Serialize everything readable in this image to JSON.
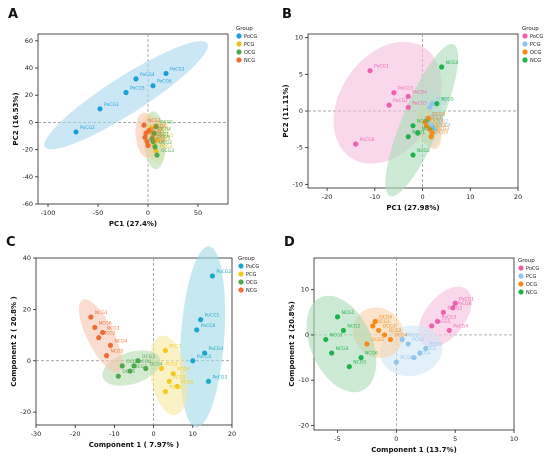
{
  "panel_letters": [
    "A",
    "B",
    "C",
    "D"
  ],
  "legend_title": "Group",
  "chart_data": [
    {
      "panel": "A",
      "type": "scatter",
      "xlabel": "PC1 (27.4%)",
      "ylabel": "PC2 (16.53%)",
      "xlim": [
        -110,
        80
      ],
      "ylim": [
        -60,
        65
      ],
      "xticks": [
        -100,
        -50,
        0,
        50
      ],
      "yticks": [
        -60,
        -40,
        -20,
        0,
        20,
        40,
        60
      ],
      "grid": false,
      "legend": "right",
      "series": [
        {
          "name": "PoCG",
          "color": "#1a9fd8",
          "fill": "#a9d7ee",
          "x": [
            -72,
            -48,
            -22,
            -12,
            18,
            5
          ],
          "y": [
            -7,
            10,
            22,
            32,
            36,
            27
          ],
          "labels": [
            "PoCG2",
            "PoCG3",
            "PoCG5",
            "PoCG4",
            "PoCG1",
            "PoCG6"
          ]
        },
        {
          "name": "PCG",
          "color": "#e8c31e",
          "fill": "#f6e7a2",
          "x": [
            3,
            5,
            6,
            8,
            9,
            4
          ],
          "y": [
            -4,
            -10,
            -16,
            -21,
            -13,
            -7
          ],
          "labels": [
            "PCG1",
            "PCG2",
            "PCG3",
            "PCG4",
            "PCG5",
            "PCG6"
          ]
        },
        {
          "name": "OCG",
          "color": "#4ea94e",
          "fill": "#b9ddb1",
          "x": [
            4,
            7,
            9,
            6,
            8,
            5
          ],
          "y": [
            -12,
            -18,
            -24,
            -8,
            -3,
            -14
          ],
          "labels": [
            "OCG1",
            "OCG2",
            "OCG3",
            "OCG4",
            "OCG5",
            "OCG6"
          ]
        },
        {
          "name": "NCG",
          "color": "#ef6b2f",
          "fill": "#f8c8ae",
          "x": [
            -4,
            -2,
            -1,
            1,
            -3,
            0
          ],
          "y": [
            -2,
            -8,
            -14,
            -6,
            -11,
            -17
          ],
          "labels": [
            "NCG1",
            "NCG2",
            "NCG3",
            "NCG4",
            "NCG5",
            "NCG6"
          ]
        }
      ]
    },
    {
      "panel": "B",
      "type": "scatter",
      "xlabel": "PC1 (27.98%)",
      "ylabel": "PC2 (11.11%)",
      "xlim": [
        -24,
        20
      ],
      "ylim": [
        -10.5,
        10.5
      ],
      "xticks": [
        -20,
        -10,
        0,
        10,
        20
      ],
      "yticks": [
        -10,
        -5,
        0,
        5,
        10
      ],
      "grid": false,
      "legend": "right",
      "series": [
        {
          "name": "PoCG",
          "color": "#ef5fad",
          "fill": "#f7bedd",
          "x": [
            -11,
            -7,
            -6,
            -3,
            -3,
            -14
          ],
          "y": [
            5.5,
            0.8,
            2.5,
            2,
            0.5,
            -4.5
          ],
          "labels": [
            "PoCG1",
            "PoCG2",
            "PoCG3",
            "PoCG4",
            "PoCG5",
            "PoCG6"
          ]
        },
        {
          "name": "PCG",
          "color": "#8fc6ec",
          "fill": "#cfe6f7",
          "x": [
            1,
            2,
            1.5,
            2.5,
            1,
            2
          ],
          "y": [
            -1,
            -2,
            0.5,
            -2.5,
            -1.5,
            1
          ],
          "labels": [
            "PCG1",
            "PCG2",
            "PCG3",
            "PCG4",
            "PCG5",
            "PCG6"
          ]
        },
        {
          "name": "OCG",
          "color": "#f58a18",
          "fill": "#fad2a6",
          "x": [
            0.5,
            1.5,
            2,
            0.8,
            1.8,
            1.2
          ],
          "y": [
            -1.5,
            -2.5,
            -3,
            -2,
            -3.5,
            -1
          ],
          "labels": [
            "OCG1",
            "OCG2",
            "OCG3",
            "OCG4",
            "OCG5",
            "OCG6"
          ]
        },
        {
          "name": "NCG",
          "color": "#1db34a",
          "fill": "#a8dbb5",
          "x": [
            -3,
            -2,
            -1,
            4,
            3,
            -2
          ],
          "y": [
            -3.5,
            -6,
            -3,
            6,
            1,
            -2
          ],
          "labels": [
            "NCG1",
            "NCG2",
            "NCG3",
            "NCG4",
            "NCG5",
            "NCG6"
          ]
        }
      ]
    },
    {
      "panel": "C",
      "type": "scatter",
      "xlabel": "Component 1 ( 7.97% )",
      "ylabel": "Component 2 ( 20.8% )",
      "xlim": [
        -30,
        20
      ],
      "ylim": [
        -25,
        40
      ],
      "xticks": [
        -30,
        -20,
        -10,
        0,
        10,
        20
      ],
      "yticks": [
        -20,
        0,
        20,
        40
      ],
      "grid": false,
      "legend": "right",
      "series": [
        {
          "name": "PoCG",
          "color": "#19a9c8",
          "fill": "#a0d9e6",
          "x": [
            15,
            12,
            13,
            11,
            14,
            10
          ],
          "y": [
            33,
            16,
            3,
            12,
            -8,
            0
          ],
          "labels": [
            "PoCG2",
            "PoCG1",
            "PoCG4",
            "PoCG6",
            "PoCG3",
            "PoCG5"
          ]
        },
        {
          "name": "PCG",
          "color": "#f2c91c",
          "fill": "#f7e79f",
          "x": [
            3,
            2,
            4,
            5,
            3,
            6
          ],
          "y": [
            4,
            -3,
            -8,
            -5,
            -12,
            -10
          ],
          "labels": [
            "PCG1",
            "PCG2",
            "PCG3",
            "PCG4",
            "PCG5",
            "PCG6"
          ]
        },
        {
          "name": "OCG",
          "color": "#4da84f",
          "fill": "#b5dbb0",
          "x": [
            -8,
            -6,
            -4,
            -2,
            -9,
            -5
          ],
          "y": [
            -2,
            -4,
            0,
            -3,
            -6,
            -2
          ],
          "labels": [
            "OCG1",
            "OCG2",
            "OCG3",
            "OCG4",
            "OCG5",
            "OCG6"
          ]
        },
        {
          "name": "NCG",
          "color": "#ee6d34",
          "fill": "#f7c6ae",
          "x": [
            -16,
            -14,
            -13,
            -11,
            -12,
            -15
          ],
          "y": [
            17,
            9,
            11,
            6,
            2,
            13
          ],
          "labels": [
            "NCG1",
            "NCG2",
            "NCG3",
            "NCG4",
            "NCG5",
            "NCG6"
          ]
        }
      ]
    },
    {
      "panel": "D",
      "type": "scatter",
      "xlabel": "Component 1 (13.7%)",
      "ylabel": "Component 2 (20.8%)",
      "xlim": [
        -7,
        10
      ],
      "ylim": [
        -21,
        17
      ],
      "xticks": [
        -5,
        0,
        5,
        10
      ],
      "yticks": [
        -20,
        -10,
        0,
        10
      ],
      "grid": false,
      "legend": "right",
      "series": [
        {
          "name": "PoCG",
          "color": "#ef5fad",
          "fill": "#f7bedd",
          "x": [
            5,
            4,
            3.5,
            4.5,
            3,
            4.8
          ],
          "y": [
            7,
            5,
            3,
            1,
            2,
            6
          ],
          "labels": [
            "PoCG1",
            "PoCG2",
            "PoCG3",
            "PoCG4",
            "PoCG5",
            "PoCG6"
          ]
        },
        {
          "name": "PCG",
          "color": "#8fc6ec",
          "fill": "#cfe6f7",
          "x": [
            1,
            2,
            0.5,
            1.5,
            2.5,
            0
          ],
          "y": [
            -2,
            -4,
            -1,
            -5,
            -3,
            -6
          ],
          "labels": [
            "PCG1",
            "PCG2",
            "PCG3",
            "PCG4",
            "PCG5",
            "PCG6"
          ]
        },
        {
          "name": "OCG",
          "color": "#f58a18",
          "fill": "#fad2a6",
          "x": [
            -2,
            -1,
            -1.5,
            -0.5,
            -2.5,
            -1.8
          ],
          "y": [
            2,
            0,
            1,
            -1,
            -2,
            3
          ],
          "labels": [
            "OCG1",
            "OCG2",
            "OCG3",
            "OCG4",
            "OCG5",
            "OCG6"
          ]
        },
        {
          "name": "NCG",
          "color": "#1db34a",
          "fill": "#a8dbb5",
          "x": [
            -5,
            -4.5,
            -6,
            -5.5,
            -4,
            -3
          ],
          "y": [
            4,
            1,
            -1,
            -4,
            -7,
            -5
          ],
          "labels": [
            "NCG1",
            "NCG2",
            "NCG3",
            "NCG4",
            "NCG5",
            "NCG6"
          ]
        }
      ]
    }
  ]
}
